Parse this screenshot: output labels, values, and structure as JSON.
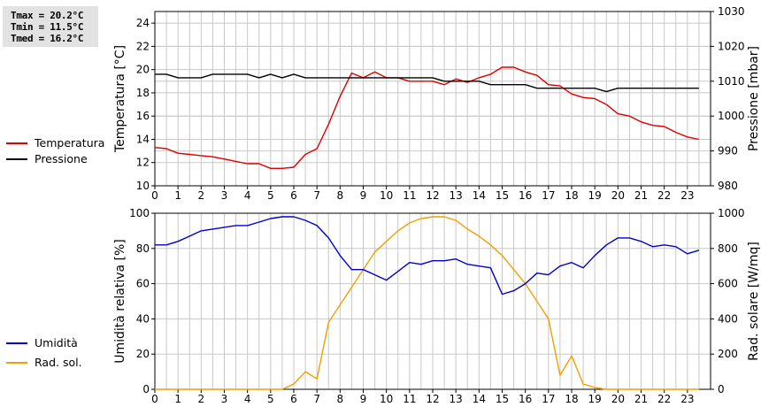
{
  "stats": {
    "tmax": "Tmax = 20.2°C",
    "tmin": "Tmin = 11.5°C",
    "tmed": "Tmed = 16.2°C"
  },
  "chart_data": [
    {
      "type": "line",
      "grid": true,
      "x_ticks": [
        0,
        1,
        2,
        3,
        4,
        5,
        6,
        7,
        8,
        9,
        10,
        11,
        12,
        13,
        14,
        15,
        16,
        17,
        18,
        19,
        20,
        21,
        22,
        23
      ],
      "x_tick_labels": [
        "0",
        "1",
        "2",
        "3",
        "4",
        "5",
        "6",
        "7",
        "8",
        "9",
        "10",
        "11",
        "12",
        "13",
        "14",
        "15",
        "16",
        "17",
        "18",
        "19",
        "20",
        "21",
        "22",
        "23"
      ],
      "xlim": [
        0,
        24
      ],
      "ylabel_left": "Temperatura [°C]",
      "ylabel_right": "Pressione [mbar]",
      "ylim_left": [
        10,
        25
      ],
      "ylim_right": [
        980,
        1030
      ],
      "y_ticks_left": [
        "10",
        "12",
        "14",
        "16",
        "18",
        "20",
        "22",
        "24"
      ],
      "y_ticks_right": [
        "980",
        "990",
        "1000",
        "1010",
        "1020",
        "1030"
      ],
      "legend_position": "left",
      "series": [
        {
          "name": "Temperatura",
          "axis": "left",
          "color": "#dd0000",
          "x": [
            0,
            0.5,
            1,
            1.5,
            2,
            2.5,
            3,
            3.5,
            4,
            4.5,
            5,
            5.5,
            6,
            6.5,
            7,
            7.5,
            8,
            8.5,
            9,
            9.5,
            10,
            10.5,
            11,
            11.5,
            12,
            12.5,
            13,
            13.5,
            14,
            14.5,
            15,
            15.5,
            16,
            16.5,
            17,
            17.5,
            18,
            18.5,
            19,
            19.5,
            20,
            20.5,
            21,
            21.5,
            22,
            22.5,
            23,
            23.5
          ],
          "values": [
            13.3,
            13.2,
            12.8,
            12.7,
            12.6,
            12.5,
            12.3,
            12.1,
            11.9,
            11.9,
            11.5,
            11.5,
            11.6,
            12.7,
            13.2,
            15.3,
            17.7,
            19.7,
            19.3,
            19.8,
            19.3,
            19.3,
            19.0,
            19.0,
            19.0,
            18.7,
            19.2,
            18.9,
            19.3,
            19.6,
            20.2,
            20.2,
            19.8,
            19.5,
            18.7,
            18.6,
            17.9,
            17.6,
            17.5,
            17.0,
            16.2,
            16.0,
            15.5,
            15.2,
            15.1,
            14.6,
            14.2,
            14.0
          ]
        },
        {
          "name": "Pressione",
          "axis": "right",
          "color": "#000000",
          "x": [
            0,
            0.5,
            1,
            1.5,
            2,
            2.5,
            3,
            3.5,
            4,
            4.5,
            5,
            5.5,
            6,
            6.5,
            7,
            7.5,
            8,
            8.5,
            9,
            9.5,
            10,
            10.5,
            11,
            11.5,
            12,
            12.5,
            13,
            13.5,
            14,
            14.5,
            15,
            15.5,
            16,
            16.5,
            17,
            17.5,
            18,
            18.5,
            19,
            19.5,
            20,
            20.5,
            21,
            21.5,
            22,
            22.5,
            23,
            23.5
          ],
          "values": [
            1012,
            1012,
            1011,
            1011,
            1011,
            1012,
            1012,
            1012,
            1012,
            1011,
            1012,
            1011,
            1012,
            1011,
            1011,
            1011,
            1011,
            1011,
            1011,
            1011,
            1011,
            1011,
            1011,
            1011,
            1011,
            1010,
            1010,
            1010,
            1010,
            1009,
            1009,
            1009,
            1009,
            1008,
            1008,
            1008,
            1008,
            1008,
            1008,
            1007,
            1008,
            1008,
            1008,
            1008,
            1008,
            1008,
            1008,
            1008
          ]
        }
      ]
    },
    {
      "type": "line",
      "grid": true,
      "x_ticks": [
        0,
        1,
        2,
        3,
        4,
        5,
        6,
        7,
        8,
        9,
        10,
        11,
        12,
        13,
        14,
        15,
        16,
        17,
        18,
        19,
        20,
        21,
        22,
        23
      ],
      "x_tick_labels": [
        "0",
        "1",
        "2",
        "3",
        "4",
        "5",
        "6",
        "7",
        "8",
        "9",
        "10",
        "11",
        "12",
        "13",
        "14",
        "15",
        "16",
        "17",
        "18",
        "19",
        "20",
        "21",
        "22",
        "23"
      ],
      "xlim": [
        0,
        24
      ],
      "ylabel_left": "Umidità relativa [%]",
      "ylabel_right": "Rad. solare [W/mq]",
      "ylim_left": [
        0,
        100
      ],
      "ylim_right": [
        0,
        1000
      ],
      "y_ticks_left": [
        "0",
        "20",
        "40",
        "60",
        "80",
        "100"
      ],
      "y_ticks_right": [
        "0",
        "200",
        "400",
        "600",
        "800",
        "1000"
      ],
      "legend_position": "left",
      "series": [
        {
          "name": "Umidità",
          "axis": "left",
          "color": "#0000cc",
          "x": [
            0,
            0.5,
            1,
            1.5,
            2,
            2.5,
            3,
            3.5,
            4,
            4.5,
            5,
            5.5,
            6,
            6.5,
            7,
            7.5,
            8,
            8.5,
            9,
            9.5,
            10,
            10.5,
            11,
            11.5,
            12,
            12.5,
            13,
            13.5,
            14,
            14.5,
            15,
            15.5,
            16,
            16.5,
            17,
            17.5,
            18,
            18.5,
            19,
            19.5,
            20,
            20.5,
            21,
            21.5,
            22,
            22.5,
            23,
            23.5
          ],
          "values": [
            82,
            82,
            84,
            87,
            90,
            91,
            92,
            93,
            93,
            95,
            97,
            98,
            98,
            96,
            93,
            86,
            76,
            68,
            68,
            65,
            62,
            67,
            72,
            71,
            73,
            73,
            74,
            71,
            70,
            69,
            54,
            56,
            60,
            66,
            65,
            70,
            72,
            69,
            76,
            82,
            86,
            86,
            84,
            81,
            82,
            81,
            77,
            79
          ]
        },
        {
          "name": "Rad. sol.",
          "axis": "right",
          "color": "#f0a000",
          "x": [
            0,
            0.5,
            1,
            1.5,
            2,
            2.5,
            3,
            3.5,
            4,
            4.5,
            5,
            5.5,
            6,
            6.5,
            7,
            7.5,
            8,
            8.5,
            9,
            9.5,
            10,
            10.5,
            11,
            11.5,
            12,
            12.5,
            13,
            13.5,
            14,
            14.5,
            15,
            15.5,
            16,
            16.5,
            17,
            17.5,
            18,
            18.5,
            19,
            19.5,
            20,
            20.5,
            21,
            21.5,
            22,
            22.5,
            23,
            23.5
          ],
          "values": [
            0,
            0,
            0,
            0,
            0,
            0,
            0,
            0,
            0,
            0,
            0,
            0,
            30,
            100,
            60,
            380,
            480,
            580,
            680,
            780,
            840,
            900,
            945,
            970,
            980,
            980,
            960,
            910,
            870,
            820,
            760,
            680,
            600,
            500,
            400,
            80,
            190,
            30,
            10,
            0,
            0,
            0,
            0,
            0,
            0,
            0,
            0,
            0
          ]
        }
      ]
    }
  ]
}
